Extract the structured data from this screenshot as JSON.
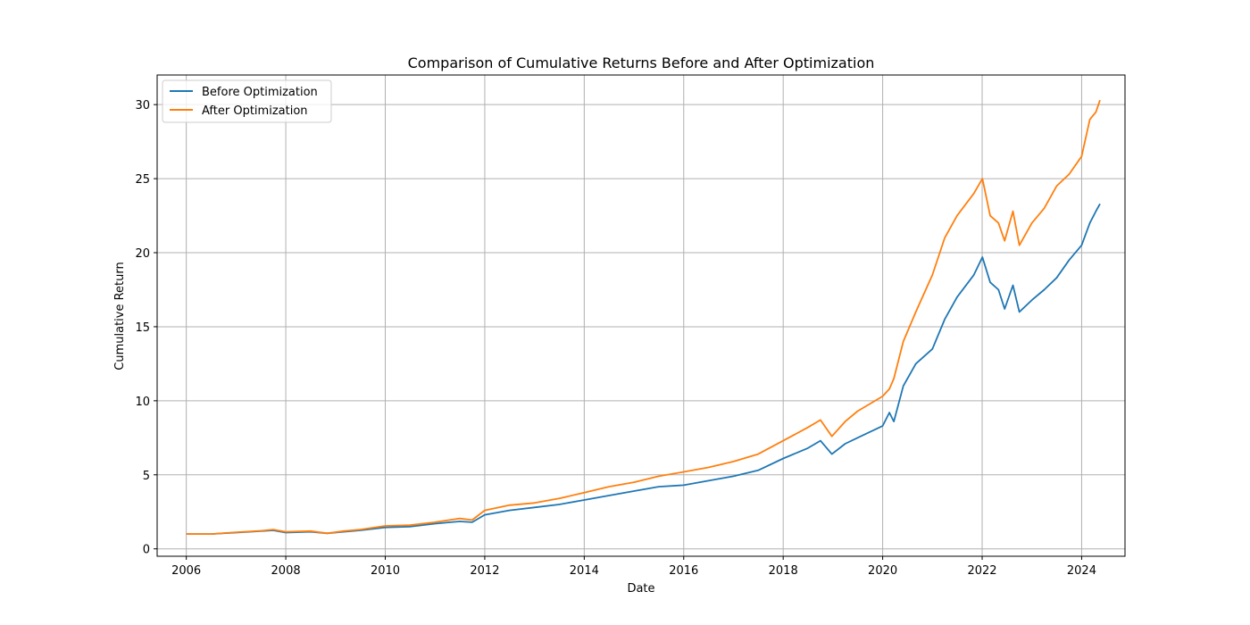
{
  "chart_data": {
    "type": "line",
    "title": "Comparison of Cumulative Returns Before and After Optimization",
    "xlabel": "Date",
    "ylabel": "Cumulative Return",
    "x_ticks": [
      "2006",
      "2008",
      "2010",
      "2012",
      "2014",
      "2016",
      "2018",
      "2020",
      "2022",
      "2024"
    ],
    "y_ticks": [
      "0",
      "5",
      "10",
      "15",
      "20",
      "25",
      "30"
    ],
    "xlim": [
      "2005-06-01",
      "2024-11-15"
    ],
    "ylim": [
      -0.5,
      32
    ],
    "grid": true,
    "legend_position": "upper left",
    "series": [
      {
        "name": "Before Optimization",
        "color": "#1f77b4",
        "x": [
          "2006-01-01",
          "2006-07-01",
          "2007-01-01",
          "2007-07-01",
          "2007-10-01",
          "2008-01-01",
          "2008-07-01",
          "2008-11-01",
          "2009-03-01",
          "2009-07-01",
          "2010-01-01",
          "2010-07-01",
          "2011-01-01",
          "2011-07-01",
          "2011-10-01",
          "2012-01-01",
          "2012-07-01",
          "2013-01-01",
          "2013-07-01",
          "2014-01-01",
          "2014-07-01",
          "2015-01-01",
          "2015-07-01",
          "2016-01-01",
          "2016-07-01",
          "2017-01-01",
          "2017-07-01",
          "2018-01-01",
          "2018-07-01",
          "2018-10-01",
          "2018-12-24",
          "2019-04-01",
          "2019-07-01",
          "2019-12-31",
          "2020-02-19",
          "2020-03-23",
          "2020-06-01",
          "2020-09-01",
          "2021-01-01",
          "2021-04-01",
          "2021-07-01",
          "2021-11-01",
          "2022-01-03",
          "2022-03-01",
          "2022-05-01",
          "2022-06-15",
          "2022-08-15",
          "2022-10-01",
          "2023-01-01",
          "2023-04-01",
          "2023-07-01",
          "2023-10-01",
          "2024-01-01",
          "2024-03-01",
          "2024-04-15",
          "2024-05-15"
        ],
        "values": [
          1.0,
          1.0,
          1.1,
          1.2,
          1.25,
          1.1,
          1.15,
          1.05,
          1.15,
          1.25,
          1.45,
          1.5,
          1.7,
          1.85,
          1.8,
          2.3,
          2.6,
          2.8,
          3.0,
          3.3,
          3.6,
          3.9,
          4.2,
          4.3,
          4.6,
          4.9,
          5.3,
          6.1,
          6.8,
          7.3,
          6.4,
          7.1,
          7.5,
          8.3,
          9.2,
          8.6,
          11.0,
          12.5,
          13.5,
          15.5,
          17.0,
          18.5,
          19.7,
          18.0,
          17.5,
          16.2,
          17.8,
          16.0,
          16.8,
          17.5,
          18.3,
          19.5,
          20.5,
          22.0,
          22.8,
          23.3
        ]
      },
      {
        "name": "After Optimization",
        "color": "#ff7f0e",
        "x": [
          "2006-01-01",
          "2006-07-01",
          "2007-01-01",
          "2007-07-01",
          "2007-10-01",
          "2008-01-01",
          "2008-07-01",
          "2008-11-01",
          "2009-03-01",
          "2009-07-01",
          "2010-01-01",
          "2010-07-01",
          "2011-01-01",
          "2011-07-01",
          "2011-10-01",
          "2012-01-01",
          "2012-07-01",
          "2013-01-01",
          "2013-07-01",
          "2014-01-01",
          "2014-07-01",
          "2015-01-01",
          "2015-07-01",
          "2016-01-01",
          "2016-07-01",
          "2017-01-01",
          "2017-07-01",
          "2018-01-01",
          "2018-07-01",
          "2018-10-01",
          "2018-12-24",
          "2019-04-01",
          "2019-07-01",
          "2019-12-31",
          "2020-02-19",
          "2020-03-23",
          "2020-06-01",
          "2020-09-01",
          "2021-01-01",
          "2021-04-01",
          "2021-07-01",
          "2021-11-01",
          "2022-01-03",
          "2022-03-01",
          "2022-05-01",
          "2022-06-15",
          "2022-08-15",
          "2022-10-01",
          "2023-01-01",
          "2023-04-01",
          "2023-07-01",
          "2023-10-01",
          "2024-01-01",
          "2024-03-01",
          "2024-04-15",
          "2024-05-15"
        ],
        "values": [
          1.0,
          1.0,
          1.12,
          1.22,
          1.3,
          1.15,
          1.2,
          1.05,
          1.2,
          1.3,
          1.55,
          1.6,
          1.8,
          2.05,
          1.95,
          2.6,
          2.95,
          3.1,
          3.4,
          3.8,
          4.2,
          4.5,
          4.9,
          5.2,
          5.5,
          5.9,
          6.4,
          7.3,
          8.2,
          8.7,
          7.6,
          8.6,
          9.3,
          10.3,
          10.8,
          11.5,
          14.0,
          16.0,
          18.5,
          21.0,
          22.5,
          24.0,
          25.0,
          22.5,
          22.0,
          20.8,
          22.8,
          20.5,
          22.0,
          23.0,
          24.5,
          25.3,
          26.5,
          29.0,
          29.5,
          30.3
        ]
      }
    ]
  }
}
